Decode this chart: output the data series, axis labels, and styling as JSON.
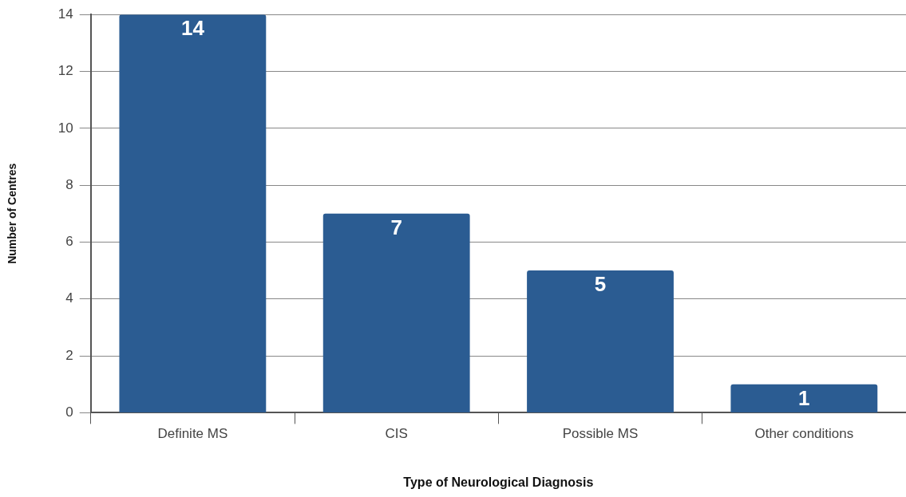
{
  "chart_data": {
    "type": "bar",
    "xlabel": "Type of Neurological Diagnosis",
    "ylabel": "Number of Centres",
    "categories": [
      "Definite MS",
      "CIS",
      "Possible MS",
      "Other conditions"
    ],
    "values": [
      14,
      7,
      5,
      1
    ],
    "color": "#2b5c92",
    "ylim": [
      0,
      14
    ],
    "yticks": [
      0,
      2,
      4,
      6,
      8,
      10,
      12,
      14
    ],
    "grid": "y",
    "data_labels": true,
    "legend": false
  }
}
